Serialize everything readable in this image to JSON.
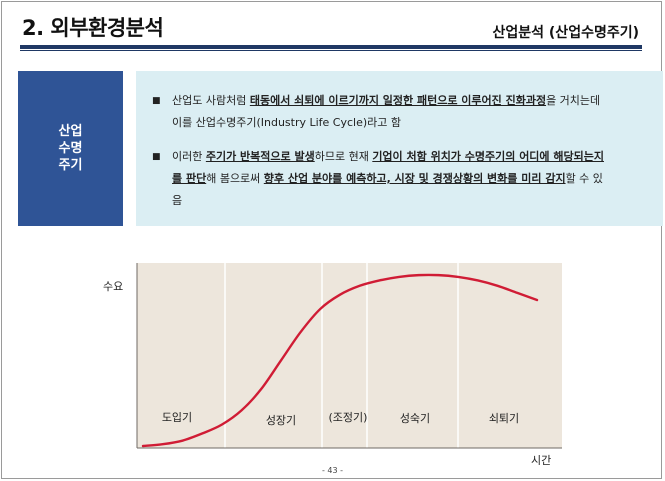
{
  "header": {
    "title": "2. 외부환경분석",
    "subtitle": "산업분석 (산업수명주기)"
  },
  "sidebox": {
    "label": "산업\n수명\n주기"
  },
  "bullets": [
    {
      "segments": [
        {
          "text": "산업도 사람처럼 ",
          "em": false
        },
        {
          "text": "태동에서 쇠퇴에 이르기까지 일정한 패턴으로 이루어진 진화과정",
          "em": true
        },
        {
          "text": "을 거치는데 이를 산업수명주기(Industry Life Cycle)라고 함",
          "em": false
        }
      ]
    },
    {
      "segments": [
        {
          "text": "이러한 ",
          "em": false
        },
        {
          "text": "주기가 반복적으로 발생",
          "em": true
        },
        {
          "text": "하므로 현재 ",
          "em": false
        },
        {
          "text": "기업이 처함 위치가 수명주기의 어디에 해당되는지를 판단",
          "em": true
        },
        {
          "text": "해 봄으로써 ",
          "em": false
        },
        {
          "text": "향후 산업 분야를 예측하고, 시장 및 경쟁상황의 변화를 미리 감지",
          "em": true
        },
        {
          "text": "할 수 있음",
          "em": false
        }
      ]
    }
  ],
  "chart_data": {
    "type": "line",
    "ylabel": "수요",
    "xlabel": "시간",
    "stages": [
      "도입기",
      "성장기",
      "(조정기)",
      "성숙기",
      "쇠퇴기"
    ],
    "series": [
      {
        "x": [
          0,
          5,
          10,
          15,
          20,
          25,
          30,
          35,
          40,
          45,
          50,
          55,
          60,
          65,
          70,
          75,
          80,
          85,
          90,
          95,
          100
        ],
        "values": [
          0,
          1,
          3,
          7,
          12,
          20,
          32,
          48,
          64,
          77,
          85,
          90,
          93,
          95,
          96,
          96,
          95,
          93,
          90,
          86,
          82
        ]
      }
    ],
    "colors": {
      "curve": "#d01c35",
      "background": "#ede6dc",
      "divider": "#ffffff"
    }
  },
  "footer": {
    "page_number": "- 43 -"
  }
}
